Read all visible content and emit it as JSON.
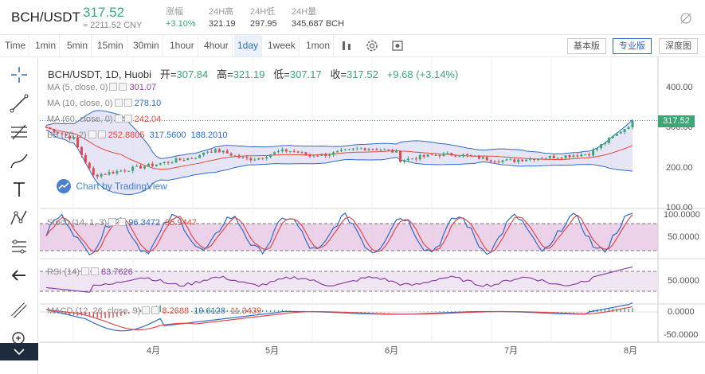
{
  "header": {
    "symbol": "BCH/USDT",
    "last_price": "317.52",
    "cny_price": "≈ 2211.52 CNY",
    "stats": [
      {
        "label": "涨幅",
        "value": "+3.10%",
        "up": true
      },
      {
        "label": "24H高",
        "value": "321.19",
        "up": false
      },
      {
        "label": "24H低",
        "value": "297.95",
        "up": false
      },
      {
        "label": "24H量",
        "value": "345,687 BCH",
        "up": false
      }
    ]
  },
  "toolbar": {
    "timeframes": [
      "Time",
      "1min",
      "5min",
      "15min",
      "30min",
      "1hour",
      "4hour",
      "1day",
      "1week",
      "1mon"
    ],
    "active_timeframe": "1day",
    "view_buttons": [
      "基本版",
      "专业版",
      "深度图"
    ],
    "active_view": "专业版"
  },
  "legend": {
    "title": "BCH/USDT, 1D, Huobi",
    "ohlc": [
      {
        "k": "开=",
        "v": "307.84"
      },
      {
        "k": "高=",
        "v": "321.19"
      },
      {
        "k": "低=",
        "v": "307.17"
      },
      {
        "k": "收=",
        "v": "317.52"
      }
    ],
    "change": "+9.68 (+3.14%)",
    "ma5": {
      "label": "MA (5, close, 0)",
      "value": "301.07"
    },
    "ma10": {
      "label": "MA (10, close, 0)",
      "value": "278.10"
    },
    "ma60": {
      "label": "MA (60, close, 0)",
      "value": "242.04"
    },
    "bb": {
      "label": "BB (20, 2)",
      "v1": "252.8805",
      "v2": "317.5600",
      "v3": "188.2010"
    },
    "watermark": "Chart by TradingView"
  },
  "stoch": {
    "label": "Stoch (14, 1, 3)",
    "v1": "96.3472",
    "v2": "95.9447"
  },
  "rsi": {
    "label": "RSI (14)",
    "v1": "83.7626"
  },
  "macd": {
    "label": "MACD (12, 26, close, 9)",
    "v1": "8.2688",
    "v2": "19.6128",
    "v3": "11.3439"
  },
  "price_tag": "317.52",
  "axes": {
    "main": [
      "400.00",
      "300.00",
      "200.00",
      "100.00"
    ],
    "stoch": [
      "100.0000",
      "50.0000"
    ],
    "rsi": [
      "50.0000"
    ],
    "macd": [
      "0.0000",
      "-50.0000"
    ],
    "x": [
      "4月",
      "5月",
      "6月",
      "7月",
      "8月"
    ]
  },
  "colors": {
    "up": "#3ba776",
    "down": "#e0484e",
    "ma5": "#8a3fa0",
    "ma10": "#2d6bc5",
    "ma60": "#e04a3e",
    "accent": "#2c6cc4"
  },
  "chart_data": [
    {
      "type": "candlestick",
      "title": "BCH/USDT, 1D, Huobi",
      "x_range": [
        "2019-03",
        "2019-08"
      ],
      "y_axis": [
        100,
        400
      ],
      "last": {
        "open": 307.84,
        "high": 321.19,
        "low": 307.17,
        "close": 317.52
      }
    },
    {
      "type": "line",
      "title": "Stoch (14, 1, 3)",
      "y_axis": [
        0,
        100
      ],
      "series": [
        {
          "name": "K",
          "last": 96.3472
        },
        {
          "name": "D",
          "last": 95.9447
        }
      ]
    },
    {
      "type": "line",
      "title": "RSI (14)",
      "y_axis": [
        0,
        100
      ],
      "series": [
        {
          "name": "RSI",
          "last": 83.7626
        }
      ]
    },
    {
      "type": "line",
      "title": "MACD (12, 26, close, 9)",
      "y_axis": [
        -50,
        20
      ],
      "series": [
        {
          "name": "MACD",
          "last": 19.6128
        },
        {
          "name": "Signal",
          "last": 11.3439
        },
        {
          "name": "Histogram",
          "last": 8.2688
        }
      ]
    }
  ]
}
